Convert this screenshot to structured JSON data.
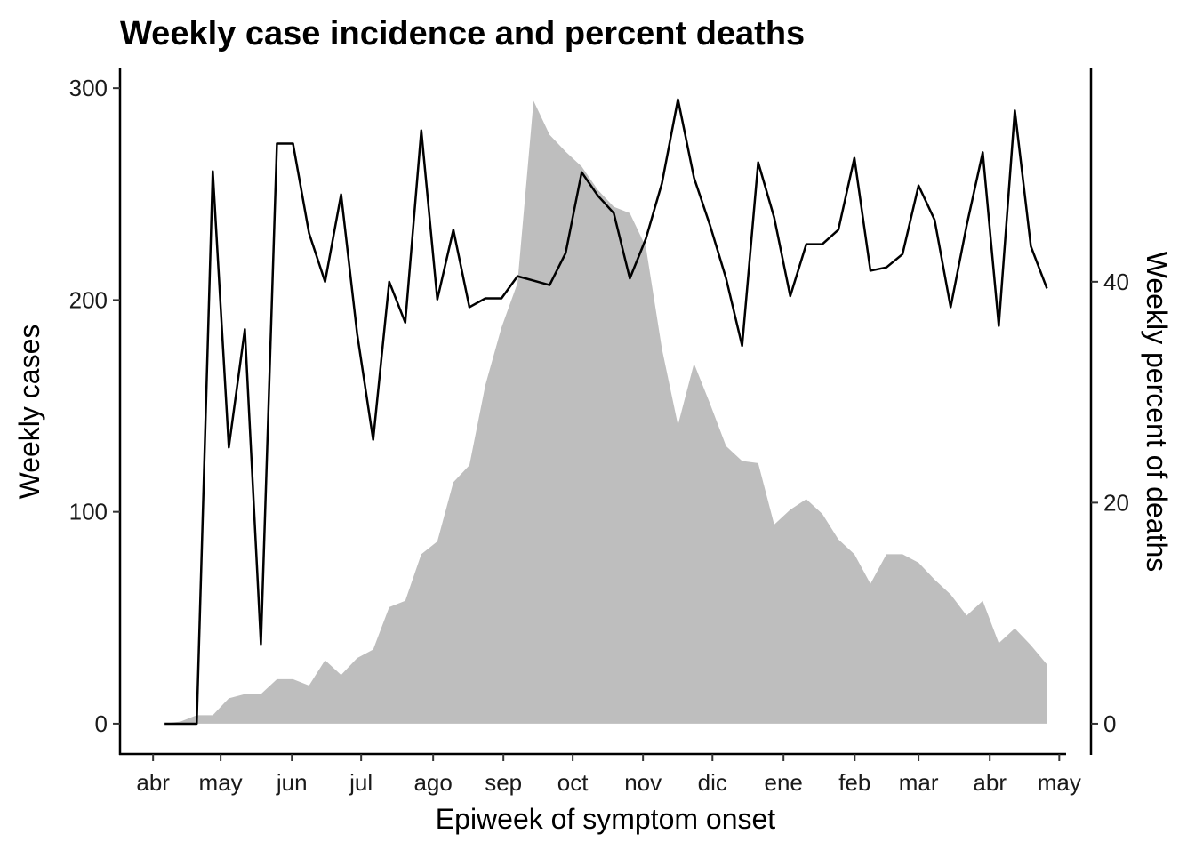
{
  "chart_data": {
    "type": "combo",
    "title": "Weekly case incidence and percent deaths",
    "x_label": "Epiweek of symptom onset",
    "y_label": "Weekly cases",
    "y2_label": "Weekly percent of deaths",
    "x": [
      0,
      1,
      2,
      3,
      4,
      5,
      6,
      7,
      8,
      9,
      10,
      11,
      12,
      13,
      14,
      15,
      16,
      17,
      18,
      19,
      20,
      21,
      22,
      23,
      24,
      25,
      26,
      27,
      28,
      29,
      30,
      31,
      32,
      33,
      34,
      35,
      36,
      37,
      38,
      39,
      40,
      41,
      42,
      43,
      44,
      45,
      46,
      47,
      48,
      49,
      50,
      51,
      52,
      53,
      54,
      55
    ],
    "xlim": [
      -2.78,
      56.14
    ],
    "xticks": [
      {
        "value": -0.72,
        "label": "abr"
      },
      {
        "value": 3.49,
        "label": "may"
      },
      {
        "value": 7.93,
        "label": "jun"
      },
      {
        "value": 12.25,
        "label": "jul"
      },
      {
        "value": 16.74,
        "label": "ago"
      },
      {
        "value": 21.12,
        "label": "sep"
      },
      {
        "value": 25.44,
        "label": "oct"
      },
      {
        "value": 29.82,
        "label": "nov"
      },
      {
        "value": 34.15,
        "label": "dic"
      },
      {
        "value": 38.58,
        "label": "ene"
      },
      {
        "value": 43.02,
        "label": "feb"
      },
      {
        "value": 47.0,
        "label": "mar"
      },
      {
        "value": 51.44,
        "label": "abr"
      },
      {
        "value": 55.77,
        "label": "may"
      }
    ],
    "ylim": [
      -14.3,
      309.3
    ],
    "yticks": [
      0,
      100,
      200,
      300
    ],
    "y2lim": [
      -2.74,
      59.3
    ],
    "y2ticks": [
      0,
      20,
      40
    ],
    "series": [
      {
        "type": "area",
        "color": "#bebebe",
        "values": [
          0,
          1,
          4,
          4,
          12,
          14,
          14,
          21,
          21,
          18,
          30,
          23,
          31,
          35,
          55,
          58,
          80,
          86,
          114,
          122,
          160,
          187,
          208,
          294,
          278,
          270,
          263,
          252,
          244,
          241,
          225,
          177,
          141,
          170,
          151,
          131,
          124,
          123,
          94,
          101,
          106,
          99,
          87,
          80,
          66,
          80,
          80,
          76,
          68,
          61,
          51,
          58,
          38,
          45,
          37,
          28
        ]
      },
      {
        "type": "line",
        "axis": "y2",
        "color": "#000000",
        "values": [
          0,
          0,
          0,
          50.0,
          25.0,
          35.7,
          7.2,
          52.5,
          52.5,
          44.4,
          40.0,
          47.9,
          35.3,
          25.7,
          40.0,
          36.3,
          53.7,
          38.4,
          44.7,
          37.7,
          38.5,
          38.5,
          40.5,
          40.1,
          39.7,
          42.6,
          49.9,
          47.8,
          46.2,
          40.3,
          43.9,
          48.9,
          56.5,
          49.4,
          45.1,
          40.3,
          34.2,
          50.8,
          45.8,
          38.7,
          43.4,
          43.4,
          44.7,
          51.2,
          41.0,
          41.3,
          42.5,
          48.7,
          45.6,
          37.7,
          45.1,
          51.7,
          36.0,
          55.5,
          43.2,
          39.4
        ]
      }
    ]
  }
}
